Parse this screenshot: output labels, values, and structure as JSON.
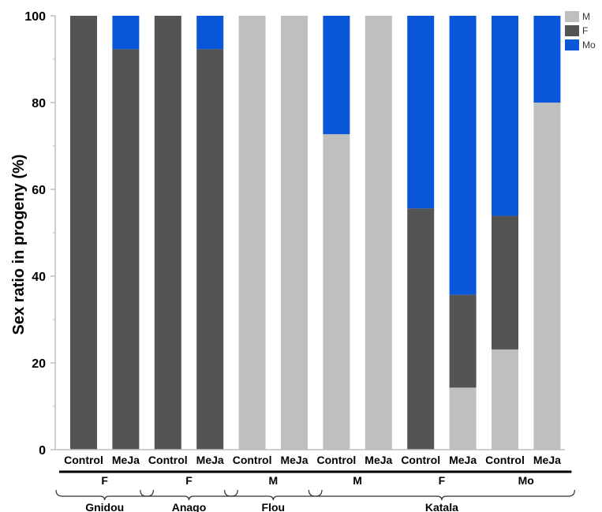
{
  "chart_data": {
    "type": "bar",
    "stacked": true,
    "ylabel": "Sex ratio  in progeny (%)",
    "xlabel": "",
    "ylim": [
      0,
      100
    ],
    "yticks": [
      0,
      20,
      40,
      60,
      80,
      100
    ],
    "grid": false,
    "legend_position": "top-right",
    "categories": [
      "Control",
      "MeJa",
      "Control",
      "MeJa",
      "Control",
      "MeJa",
      "Control",
      "MeJa",
      "Control",
      "MeJa",
      "Control",
      "MeJa"
    ],
    "series": [
      {
        "name": "M",
        "color": "#bfbfbf",
        "values": [
          0,
          0,
          0,
          0,
          100,
          100,
          72.7,
          100,
          0,
          14.3,
          23.1,
          80
        ]
      },
      {
        "name": "F",
        "color": "#545454",
        "values": [
          100,
          92.3,
          100,
          92.3,
          0,
          0,
          0,
          0,
          55.6,
          21.4,
          30.8,
          0
        ]
      },
      {
        "name": "Mo",
        "color": "#0a56d9",
        "values": [
          0,
          7.7,
          0,
          7.7,
          0,
          0,
          27.3,
          0,
          44.4,
          64.3,
          46.1,
          20
        ]
      }
    ],
    "sex_groups": [
      {
        "label": "F",
        "start": 0,
        "end": 1
      },
      {
        "label": "F",
        "start": 2,
        "end": 3
      },
      {
        "label": "M",
        "start": 4,
        "end": 5
      },
      {
        "label": "M",
        "start": 6,
        "end": 7
      },
      {
        "label": "F",
        "start": 8,
        "end": 9
      },
      {
        "label": "Mo",
        "start": 10,
        "end": 11
      }
    ],
    "lineage_groups": [
      {
        "label": "Gnidou",
        "start": 0,
        "end": 1
      },
      {
        "label": "Anago",
        "start": 2,
        "end": 3
      },
      {
        "label": "Flou",
        "start": 4,
        "end": 5
      },
      {
        "label": "Katala",
        "start": 6,
        "end": 11
      }
    ]
  }
}
